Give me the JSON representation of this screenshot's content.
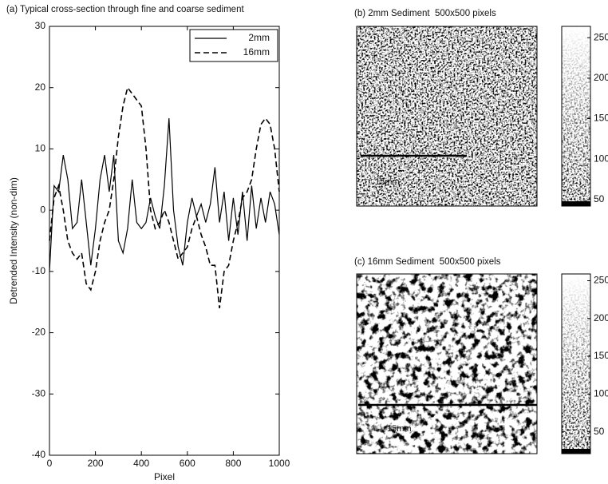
{
  "chart_data": [
    {
      "type": "line",
      "title": "(a) Typical cross-section through fine and coarse sediment",
      "xlabel": "Pixel",
      "ylabel": "Detrended Intensity (non-dim)",
      "x": [
        0,
        20,
        40,
        60,
        80,
        100,
        120,
        140,
        160,
        180,
        200,
        220,
        240,
        260,
        280,
        300,
        320,
        340,
        360,
        380,
        400,
        420,
        440,
        460,
        480,
        500,
        520,
        540,
        560,
        580,
        600,
        620,
        640,
        660,
        680,
        700,
        720,
        740,
        760,
        780,
        800,
        820,
        840,
        860,
        880,
        900,
        920,
        940,
        960,
        980,
        1000
      ],
      "series": [
        {
          "name": "2mm",
          "color": "#000000",
          "linestyle": "solid",
          "values": [
            -10,
            4,
            3,
            9,
            5,
            -3,
            -2,
            5,
            -2,
            -9,
            -3,
            5,
            9,
            3,
            9,
            -5,
            -7,
            -3,
            5,
            -2,
            -3,
            -2,
            2,
            -1,
            -3,
            4,
            15,
            0,
            -6,
            -9,
            -2,
            2,
            -1,
            1,
            -2,
            1,
            7,
            -2,
            3,
            -5,
            2,
            -4,
            3,
            -5,
            4,
            -3,
            2,
            -2,
            3,
            1,
            -4
          ]
        },
        {
          "name": "16mm",
          "color": "#000000",
          "linestyle": "dashed",
          "values": [
            -5,
            2,
            4,
            0,
            -5,
            -7,
            -8,
            -7,
            -12,
            -13,
            -10,
            -5,
            -2,
            0,
            5,
            12,
            17,
            20,
            19,
            18,
            17,
            10,
            0,
            -3,
            -2,
            0,
            -2,
            -5,
            -8,
            -7,
            -6,
            -3,
            -1,
            -4,
            -6,
            -9,
            -9,
            -16,
            -10,
            -9,
            -5,
            -2,
            2,
            3,
            5,
            10,
            14,
            15,
            14,
            10,
            3
          ]
        }
      ],
      "xlim": [
        0,
        1000
      ],
      "xticks": [
        0,
        200,
        400,
        600,
        800,
        1000
      ],
      "ylim": [
        -40,
        30
      ],
      "yticks": [
        -40,
        -30,
        -20,
        -10,
        0,
        10,
        20,
        30
      ],
      "legend": "upper right"
    },
    {
      "type": "image",
      "title": "(b) 2mm Sediment  500x500 pixels",
      "annotation": "15mm",
      "colorbar_lim": [
        42,
        264
      ],
      "colorbar_ticks": [
        50,
        100,
        150,
        200,
        250
      ]
    },
    {
      "type": "image",
      "title": "(c) 16mm Sediment  500x500 pixels",
      "annotation": "15mm",
      "colorbar_lim": [
        21,
        259
      ],
      "colorbar_ticks": [
        50,
        100,
        150,
        200,
        250
      ]
    }
  ]
}
